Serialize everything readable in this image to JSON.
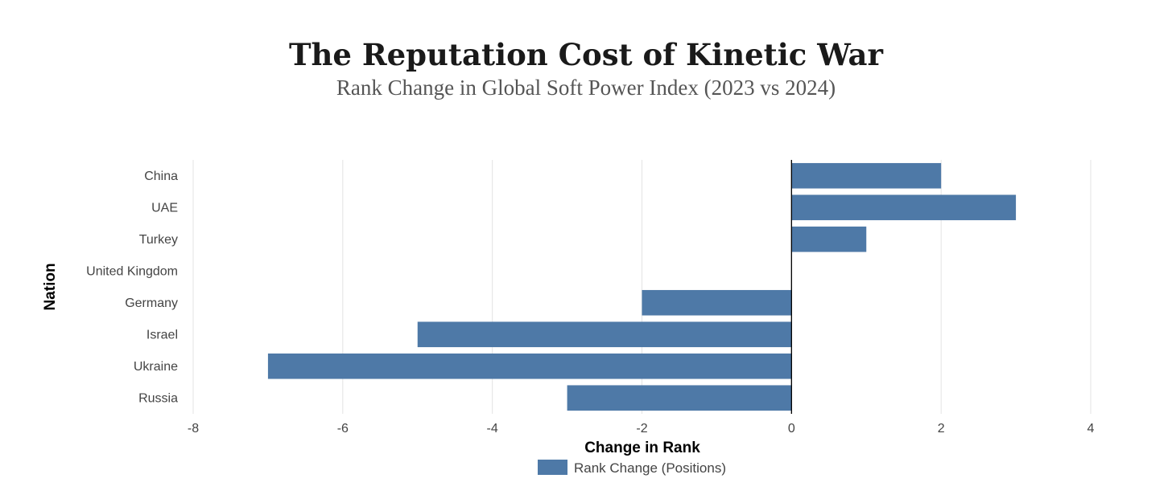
{
  "title": "The Reputation Cost of Kinetic War",
  "subtitle": "Rank Change in Global Soft Power Index (2023 vs 2024)",
  "colors": {
    "bar": "#4e79a7",
    "grid": "#e3e3e3",
    "zero_line": "#000000"
  },
  "chart_data": {
    "type": "bar",
    "orientation": "horizontal",
    "categories": [
      "China",
      "UAE",
      "Turkey",
      "United Kingdom",
      "Germany",
      "Israel",
      "Ukraine",
      "Russia"
    ],
    "series": [
      {
        "name": "Rank Change (Positions)",
        "values": [
          2,
          3,
          1,
          0,
          -2,
          -5,
          -7,
          -3
        ]
      }
    ],
    "xlabel": "Change in Rank",
    "ylabel": "Nation",
    "xlim": [
      -8,
      4
    ],
    "xticks": [
      -8,
      -6,
      -4,
      -2,
      0,
      2,
      4
    ],
    "grid": true,
    "legend_position": "bottom"
  }
}
